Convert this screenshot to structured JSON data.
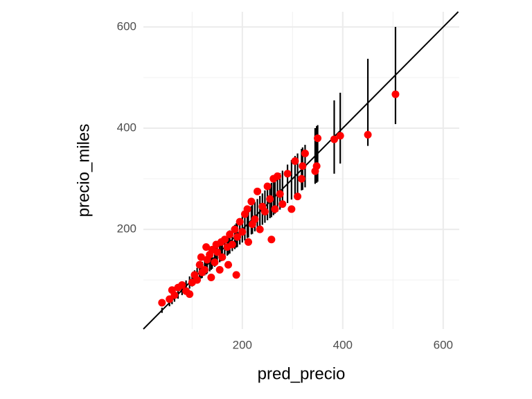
{
  "chart_data": {
    "type": "scatter",
    "x_label": "pred_precio",
    "y_label": "precio_miles",
    "xlim": [
      3,
      632
    ],
    "ylim": [
      3,
      630
    ],
    "xticks": [
      200,
      400,
      600
    ],
    "yticks": [
      200,
      400,
      600
    ],
    "minor_xticks": [
      100,
      300,
      500
    ],
    "minor_yticks": [
      100,
      300,
      500
    ],
    "grid": true,
    "reference_line": {
      "slope": 1,
      "intercept": 0,
      "color": "#000000"
    },
    "series": [
      {
        "color": "#ff0000",
        "errorbar_color": "#000000",
        "x": [
          40,
          55,
          60,
          65,
          72,
          80,
          88,
          95,
          100,
          105,
          110,
          115,
          118,
          120,
          125,
          128,
          130,
          135,
          138,
          140,
          145,
          148,
          150,
          155,
          158,
          160,
          165,
          170,
          172,
          175,
          180,
          185,
          188,
          190,
          195,
          200,
          205,
          210,
          212,
          218,
          220,
          225,
          230,
          235,
          240,
          245,
          250,
          255,
          258,
          262,
          265,
          270,
          275,
          280,
          290,
          298,
          305,
          310,
          318,
          320,
          325,
          345,
          348,
          350,
          383,
          395,
          450,
          505
        ],
        "values": [
          55,
          62,
          80,
          70,
          85,
          90,
          78,
          72,
          95,
          110,
          100,
          130,
          145,
          115,
          120,
          165,
          140,
          150,
          105,
          160,
          135,
          170,
          155,
          120,
          175,
          145,
          180,
          165,
          130,
          190,
          170,
          200,
          110,
          185,
          215,
          195,
          230,
          240,
          175,
          255,
          210,
          220,
          275,
          200,
          245,
          235,
          285,
          260,
          180,
          300,
          240,
          305,
          270,
          250,
          310,
          240,
          335,
          265,
          300,
          325,
          350,
          315,
          325,
          380,
          378,
          385,
          387,
          467
        ],
        "lower": [
          35,
          48,
          52,
          57,
          63,
          70,
          77,
          83,
          87,
          91,
          96,
          100,
          103,
          104,
          109,
          111,
          113,
          117,
          120,
          122,
          126,
          129,
          131,
          135,
          137,
          139,
          144,
          148,
          150,
          152,
          157,
          161,
          164,
          165,
          170,
          174,
          178,
          183,
          184,
          190,
          191,
          196,
          200,
          204,
          209,
          213,
          218,
          222,
          224,
          228,
          231,
          235,
          239,
          244,
          252,
          259,
          265,
          270,
          277,
          278,
          283,
          290,
          292,
          294,
          310,
          330,
          365,
          408
        ],
        "upper": [
          45,
          62,
          68,
          73,
          81,
          90,
          99,
          107,
          113,
          119,
          124,
          130,
          133,
          136,
          141,
          145,
          147,
          153,
          156,
          158,
          164,
          167,
          170,
          175,
          179,
          181,
          186,
          192,
          194,
          198,
          203,
          209,
          212,
          215,
          220,
          226,
          232,
          237,
          240,
          246,
          249,
          254,
          260,
          266,
          271,
          277,
          283,
          288,
          292,
          296,
          299,
          305,
          311,
          316,
          328,
          337,
          345,
          350,
          359,
          362,
          367,
          400,
          404,
          406,
          455,
          470,
          537,
          600
        ]
      }
    ]
  }
}
